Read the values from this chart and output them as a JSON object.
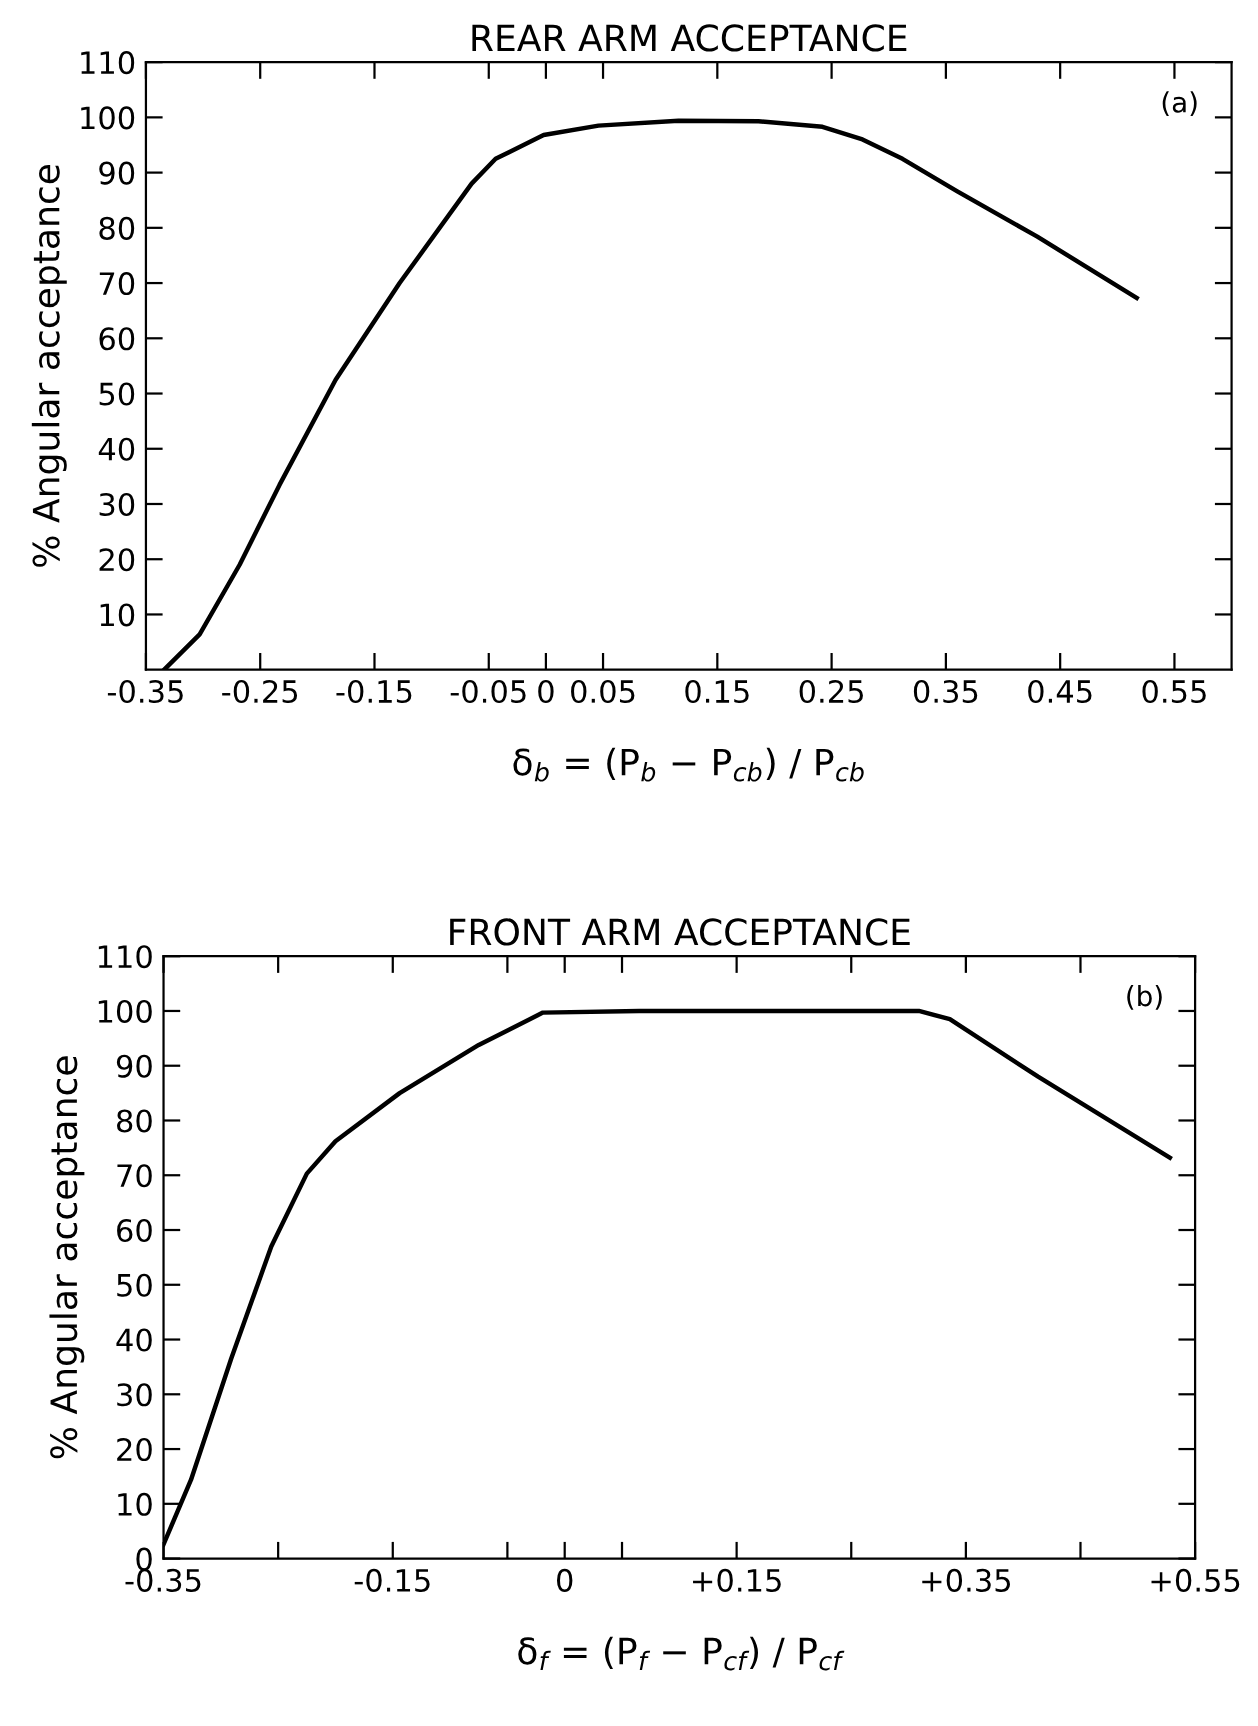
{
  "chart_data": [
    {
      "type": "line",
      "title": "REAR ARM ACCEPTANCE",
      "xlabel": "δ$_{b}$ = (P$_{b}$ − P$_{cb}$) / P$_{cb}$",
      "ylabel": "% Angular acceptance",
      "annotations": [
        "(a)"
      ],
      "xlim": [
        -0.35,
        0.6
      ],
      "ylim": [
        0,
        110
      ],
      "xticks": [
        -0.35,
        -0.25,
        -0.15,
        -0.05,
        0,
        0.05,
        0.15,
        0.25,
        0.35,
        0.45,
        0.55
      ],
      "yticks": [
        10,
        20,
        30,
        40,
        50,
        60,
        70,
        80,
        90,
        100,
        110
      ],
      "grid": false,
      "legend": false,
      "marker": "none",
      "line_style": "solid",
      "series": [
        {
          "color": "#000000",
          "x": [
            -0.334,
            -0.303,
            -0.268,
            -0.233,
            -0.184,
            -0.128,
            -0.065,
            -0.044,
            -0.002,
            0.046,
            0.116,
            0.186,
            0.242,
            0.277,
            0.312,
            0.36,
            0.43,
            0.517
          ],
          "values": [
            0,
            6.4,
            19,
            33.5,
            52.5,
            70,
            88,
            92.5,
            96.8,
            98.5,
            99.4,
            99.3,
            98.3,
            96,
            92.5,
            86.6,
            78.4,
            67.3
          ]
        }
      ]
    },
    {
      "type": "line",
      "title": "FRONT ARM ACCEPTANCE",
      "xlabel": "δ$_{f}$ = (P$_{f}$ − P$_{cf}$) / P$_{cf}$",
      "ylabel": "% Angular acceptance",
      "annotations": [
        "(b)"
      ],
      "xlim": [
        -0.35,
        0.55
      ],
      "ylim": [
        0,
        110
      ],
      "xticks": [
        {
          "value": -0.35,
          "label": "-0.35"
        },
        {
          "value": -0.25,
          "label": null
        },
        {
          "value": -0.15,
          "label": "-0.15"
        },
        {
          "value": -0.05,
          "label": null
        },
        0,
        {
          "value": 0.05,
          "label": null
        },
        {
          "value": 0.15,
          "label": "+0.15"
        },
        {
          "value": 0.25,
          "label": null
        },
        {
          "value": 0.35,
          "label": "+0.35"
        },
        {
          "value": 0.45,
          "label": null
        },
        {
          "value": 0.55,
          "label": "+0.55"
        }
      ],
      "yticks": [
        0,
        10,
        20,
        30,
        40,
        50,
        60,
        70,
        80,
        90,
        100,
        110
      ],
      "grid": false,
      "legend": false,
      "marker": "none",
      "line_style": "solid",
      "series": [
        {
          "color": "#000000",
          "x": [
            -0.35,
            -0.326,
            -0.291,
            -0.256,
            -0.225,
            -0.2,
            -0.144,
            -0.075,
            -0.019,
            0.065,
            0.204,
            0.309,
            0.336,
            0.413,
            0.528
          ],
          "values": [
            2.6,
            14.4,
            36.5,
            57,
            70.3,
            76.2,
            85,
            93.8,
            99.7,
            100,
            100,
            100,
            98.5,
            88,
            73.2
          ]
        }
      ]
    }
  ]
}
